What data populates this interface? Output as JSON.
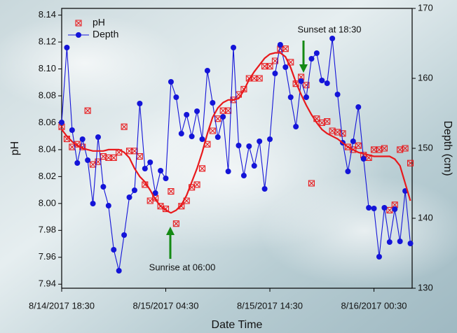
{
  "chart_data": {
    "type": "line",
    "x_label": "Date Time",
    "y_label": "pH",
    "y2_label": "Depth (cm)",
    "x": [
      "8/14/2017 18:30",
      "8/14/2017 19:00",
      "8/14/2017 19:30",
      "8/14/2017 20:00",
      "8/14/2017 20:30",
      "8/14/2017 21:00",
      "8/14/2017 21:30",
      "8/14/2017 22:00",
      "8/14/2017 22:30",
      "8/14/2017 23:00",
      "8/14/2017 23:30",
      "8/15/2017 00:00",
      "8/15/2017 00:30",
      "8/15/2017 01:00",
      "8/15/2017 01:30",
      "8/15/2017 02:00",
      "8/15/2017 02:30",
      "8/15/2017 03:00",
      "8/15/2017 03:30",
      "8/15/2017 04:00",
      "8/15/2017 04:30",
      "8/15/2017 05:00",
      "8/15/2017 05:30",
      "8/15/2017 06:00",
      "8/15/2017 06:30",
      "8/15/2017 07:00",
      "8/15/2017 07:30",
      "8/15/2017 08:00",
      "8/15/2017 08:30",
      "8/15/2017 09:00",
      "8/15/2017 09:30",
      "8/15/2017 10:00",
      "8/15/2017 10:30",
      "8/15/2017 11:00",
      "8/15/2017 11:30",
      "8/15/2017 12:00",
      "8/15/2017 12:30",
      "8/15/2017 13:00",
      "8/15/2017 13:30",
      "8/15/2017 14:00",
      "8/15/2017 14:30",
      "8/15/2017 15:00",
      "8/15/2017 15:30",
      "8/15/2017 16:00",
      "8/15/2017 16:30",
      "8/15/2017 17:00",
      "8/15/2017 17:30",
      "8/15/2017 18:00",
      "8/15/2017 18:30",
      "8/15/2017 19:00",
      "8/15/2017 19:30",
      "8/15/2017 20:00",
      "8/15/2017 20:30",
      "8/15/2017 21:00",
      "8/15/2017 21:30",
      "8/15/2017 22:00",
      "8/15/2017 22:30",
      "8/15/2017 23:00",
      "8/15/2017 23:30",
      "8/16/2017 00:00",
      "8/16/2017 00:30",
      "8/16/2017 01:00",
      "8/16/2017 01:30",
      "8/16/2017 02:00",
      "8/16/2017 02:30",
      "8/16/2017 03:00",
      "8/16/2017 03:30",
      "8/16/2017 04:00"
    ],
    "xlim": [
      "8/14/2017 18:30",
      "8/16/2017 04:10"
    ],
    "xticks": [
      "8/14/2017 18:30",
      "8/15/2017 04:30",
      "8/15/2017 14:30",
      "8/16/2017 00:30"
    ],
    "ylim": [
      7.937,
      8.145
    ],
    "yticks": [
      7.94,
      7.96,
      7.98,
      {
        "value": 8,
        "label": "8.00"
      },
      8.02,
      8.04,
      8.06,
      8.08,
      {
        "value": 8.1,
        "label": "8.10"
      },
      8.12,
      8.14
    ],
    "y2lim": [
      130,
      170
    ],
    "y2ticks": [
      130,
      140,
      150,
      160,
      170
    ],
    "series": [
      {
        "name": "pH",
        "color": "#e8191c",
        "marker": "boxed-x",
        "values": [
          8.057,
          8.048,
          8.042,
          8.044,
          8.042,
          8.069,
          8.029,
          8.031,
          8.035,
          8.034,
          8.034,
          8.038,
          8.057,
          8.039,
          8.039,
          8.035,
          8.014,
          8.002,
          8.004,
          7.998,
          7.996,
          8.009,
          7.985,
          7.998,
          8.002,
          8.012,
          8.014,
          8.026,
          8.044,
          8.054,
          8.063,
          8.069,
          8.069,
          8.077,
          8.081,
          8.085,
          8.093,
          8.093,
          8.093,
          8.102,
          8.102,
          8.106,
          8.115,
          8.115,
          8.105,
          8.089,
          8.094,
          8.088,
          8.015,
          8.063,
          8.06,
          8.061,
          8.054,
          8.053,
          8.052,
          8.042,
          8.04,
          8.043,
          8.036,
          8.034,
          8.04,
          8.04,
          8.041,
          7.995,
          7.999,
          8.04,
          8.041,
          8.03
        ]
      },
      {
        "name": "Depth",
        "color": "#1414d8",
        "marker": "circle",
        "axis": "y2",
        "values": [
          153.7,
          164.4,
          152.6,
          147.9,
          151.3,
          148.3,
          142.1,
          151.6,
          144.5,
          141.8,
          135.5,
          132.5,
          137.6,
          143,
          144,
          156.4,
          147.1,
          148,
          143.6,
          146.8,
          145.7,
          159.5,
          157.3,
          152.1,
          154.8,
          151.7,
          155.3,
          151.3,
          161.1,
          156.5,
          151.6,
          154.5,
          146.7,
          164.4,
          150.4,
          146.1,
          150.3,
          147.5,
          151,
          144.2,
          151.3,
          160.7,
          164.8,
          161.6,
          157.3,
          153.1,
          159.6,
          157.3,
          162.8,
          163.6,
          159.7,
          159.3,
          165.7,
          157.7,
          150.8,
          146.7,
          151,
          155.9,
          148.5,
          141.5,
          141.4,
          134.5,
          141.5,
          136.6,
          141.3,
          136.7,
          143.9,
          136.4
        ]
      },
      {
        "color": "#e8191c",
        "values": [
          8.055,
          8.05,
          8.046,
          8.043,
          8.041,
          8.04,
          8.039,
          8.039,
          8.039,
          8.04,
          8.04,
          8.04,
          8.038,
          8.034,
          8.026,
          8.02,
          8.016,
          8.01,
          8.003,
          7.998,
          7.995,
          7.993,
          7.995,
          7.999,
          8.006,
          8.016,
          8.026,
          8.038,
          8.052,
          8.064,
          8.071,
          8.075,
          8.077,
          8.077,
          8.078,
          8.084,
          8.092,
          8.098,
          8.103,
          8.108,
          8.111,
          8.112,
          8.112,
          8.109,
          8.101,
          8.09,
          8.081,
          8.073,
          8.066,
          8.06,
          8.055,
          8.052,
          8.05,
          8.048,
          8.045,
          8.042,
          8.04,
          8.038,
          8.037,
          8.036,
          8.035,
          8.035,
          8.035,
          8.035,
          8.033,
          8.028,
          8.015,
          8.002
        ]
      }
    ],
    "annotations": [
      "Sunset at 18:30",
      "Sunrise at 06:00"
    ],
    "annotation_color": "#148a14"
  }
}
